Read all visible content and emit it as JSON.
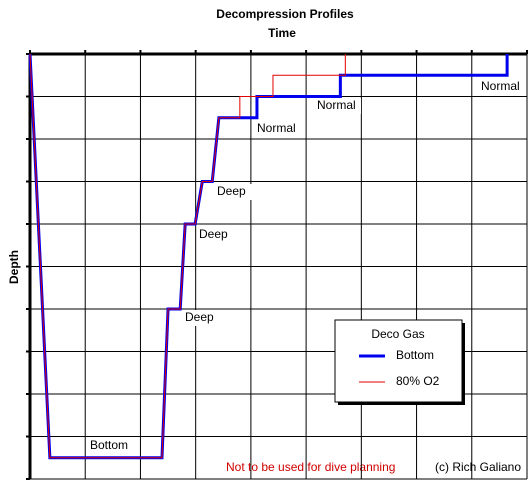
{
  "chart_data": {
    "type": "line",
    "title": "Decompression Profiles",
    "x_label": "Time",
    "y_label": "Depth",
    "xlim": [
      0,
      9
    ],
    "ylim": [
      10,
      0
    ],
    "xticks": [
      0,
      1,
      2,
      3,
      4,
      5,
      6,
      7,
      8,
      9
    ],
    "yticks": [
      0,
      1,
      2,
      3,
      4,
      5,
      6,
      7,
      8,
      9,
      10
    ],
    "grid": true,
    "legend_title": "Deco Gas",
    "series": [
      {
        "name": "Bottom",
        "color": "#0000ee",
        "x": [
          0,
          0.36,
          2.39,
          2.5,
          2.72,
          2.81,
          2.99,
          3.12,
          3.3,
          3.42,
          4.11,
          4.11,
          5.62,
          5.62,
          8.64,
          8.64
        ],
        "values": [
          0,
          9.5,
          9.5,
          6,
          6,
          4,
          4,
          3,
          3,
          1.5,
          1.5,
          1,
          1,
          0.5,
          0.5,
          0
        ]
      },
      {
        "name": "80% O2",
        "color": "#e00000",
        "x": [
          0,
          0.36,
          2.39,
          2.5,
          2.72,
          2.81,
          2.99,
          3.12,
          3.3,
          3.42,
          3.8,
          3.8,
          4.4,
          4.4,
          5.71,
          5.71
        ],
        "values": [
          0,
          9.5,
          9.5,
          6,
          6,
          4,
          4,
          3,
          3,
          1.5,
          1.5,
          1,
          1,
          0.5,
          0.5,
          0
        ]
      }
    ],
    "annotations": [
      "Bottom",
      "Deep",
      "Deep",
      "Deep",
      "Normal",
      "Normal",
      "Normal"
    ],
    "note": "Not to be used for dive planning",
    "credit": "(c) Rich Galiano"
  }
}
